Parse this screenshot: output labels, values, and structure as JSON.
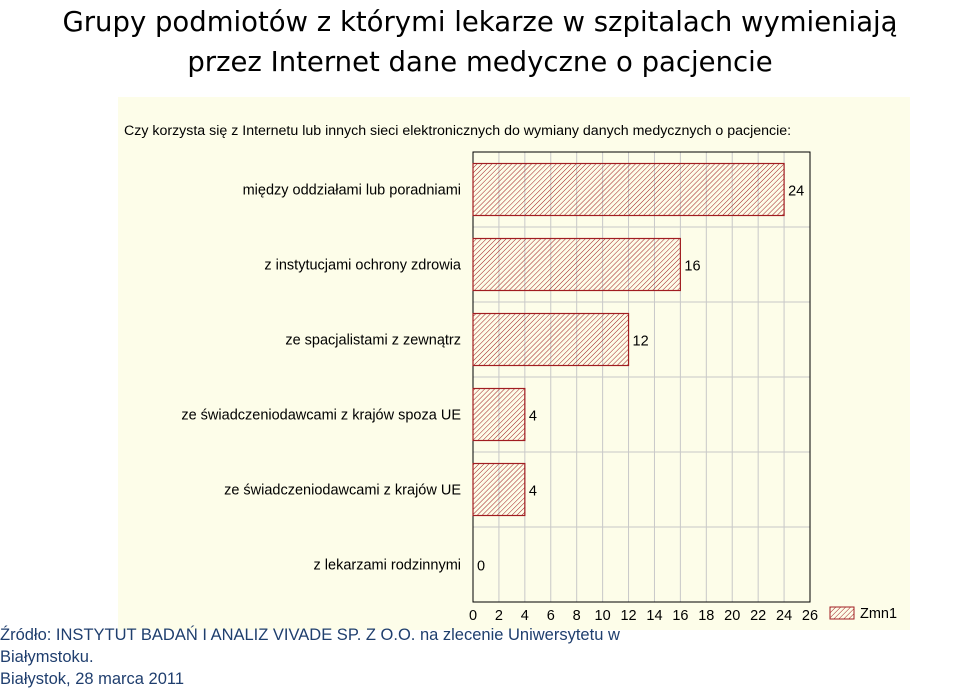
{
  "slide": {
    "title_line1": "Grupy podmiotów z którymi lekarze w szpitalach wymieniają",
    "title_line2": "przez Internet dane medyczne o pacjencie"
  },
  "source": {
    "line1": "Źródło: INSTYTUT BADAŃ I ANALIZ VIVADE SP. Z O.O. na zlecenie Uniwersytetu w",
    "line2": "Białymstoku."
  },
  "date_line": "Białystok, 28 marca 2011",
  "colors": {
    "bar_stroke": "#a11d21",
    "bar_hatch": "#a11d21",
    "background": "#fdfde9",
    "grid": "#c8c8c8",
    "caption_text": "#1f3e6e"
  },
  "chart_data": {
    "type": "bar",
    "orientation": "horizontal",
    "title": "Czy korzysta się z Internetu lub innych sieci elektronicznych do wymiany danych medycznych o pacjencie:",
    "categories": [
      "między oddziałami lub poradniami",
      "z instytucjami ochrony zdrowia",
      "ze spacjalistami z zewnątrz",
      "ze świadczeniodawcami z krajów spoza UE",
      "ze świadczeniodawcami z krajów UE",
      "z lekarzami rodzinnymi"
    ],
    "series": [
      {
        "name": "Zmn1",
        "values": [
          24,
          16,
          12,
          4,
          4,
          0
        ]
      }
    ],
    "xlim": [
      0,
      26
    ],
    "xticks": [
      0,
      2,
      4,
      6,
      8,
      10,
      12,
      14,
      16,
      18,
      20,
      22,
      24,
      26
    ],
    "grid": true,
    "legend_position": "bottom-right",
    "bar_fill": "diagonal-hatch"
  }
}
